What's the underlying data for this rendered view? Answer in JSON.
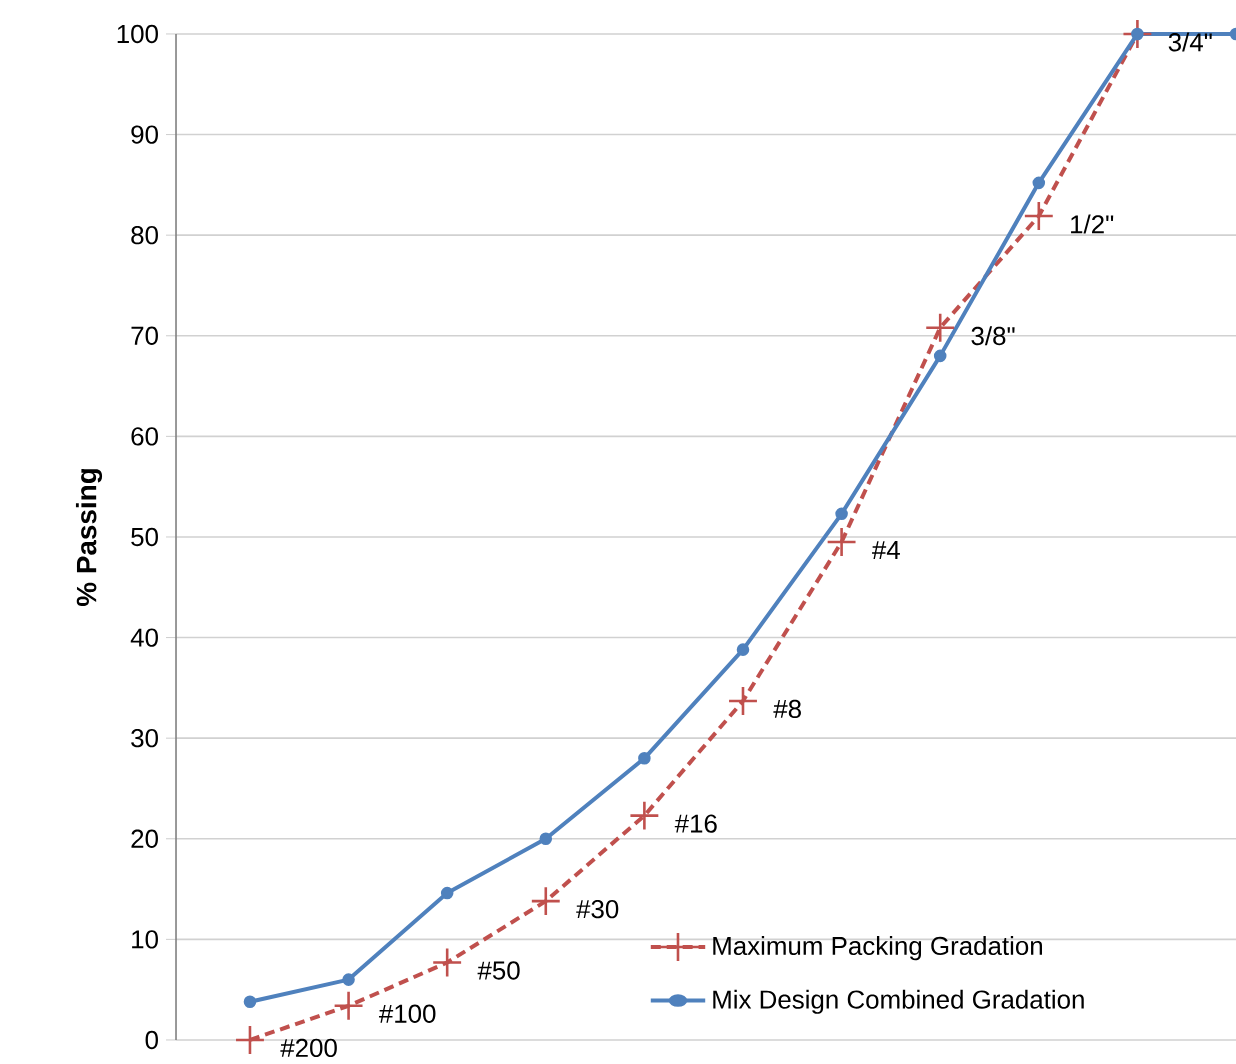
{
  "chart_data": {
    "type": "line",
    "ylabel": "% Passing",
    "categories": [
      null,
      null,
      null,
      null,
      null,
      null,
      null,
      null,
      null,
      null,
      null
    ],
    "ylim": [
      0,
      100
    ],
    "yticks": [
      0,
      10,
      20,
      30,
      40,
      50,
      60,
      70,
      80,
      90,
      100
    ],
    "tick_labels": "y",
    "grid": "y",
    "legend": "bottom right",
    "series": [
      {
        "name": "Maximum Packing Gradation",
        "color": "#c0504d",
        "marker": "cross",
        "line_style": "dashed",
        "values": [
          0,
          3.4,
          7.7,
          13.8,
          22.3,
          33.7,
          49.5,
          70.8,
          81.9,
          100,
          null
        ]
      },
      {
        "name": "Mix Design Combined Gradation",
        "color": "#4f81bd",
        "marker": "circle",
        "line_style": "solid",
        "values": [
          3.8,
          6.0,
          14.6,
          20.0,
          28.0,
          38.8,
          52.3,
          68.0,
          85.2,
          100,
          100
        ]
      }
    ],
    "annotations": [
      "#200",
      "#100",
      "#50",
      "#30",
      "#16",
      "#8",
      "#4",
      "3/8\"",
      "1/2\"",
      "3/4\""
    ]
  }
}
